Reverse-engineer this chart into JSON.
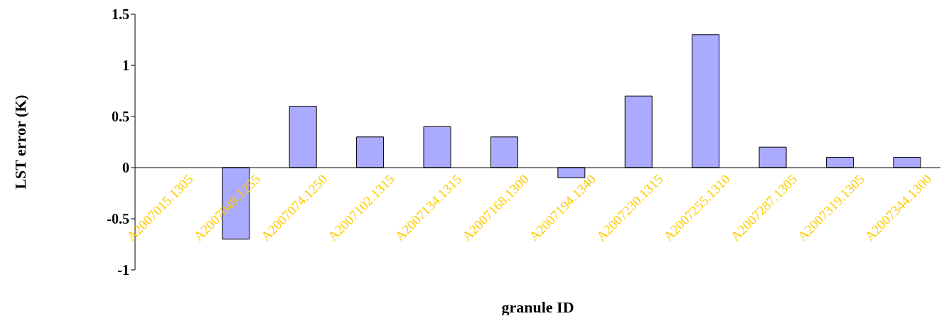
{
  "chart_data": {
    "type": "bar",
    "xlabel": "granule ID",
    "ylabel": "LST error (K)",
    "categories": [
      "A2007015.1305",
      "A2007049.1255",
      "A2007074.1250",
      "A2007102.1315",
      "A2007134.1315",
      "A2007168.1300",
      "A2007194.1340",
      "A2007230.1315",
      "A2007255.1310",
      "A2007287.1305",
      "A2007319.1305",
      "A2007344.1300"
    ],
    "values": [
      0,
      -0.7,
      0.6,
      0.3,
      0.4,
      0.3,
      -0.1,
      0.7,
      1.3,
      0.2,
      0.1,
      0.1
    ],
    "color": "#aaaaff",
    "ylim": [
      -1,
      1.5
    ],
    "yticks": [
      -1,
      -0.5,
      0,
      0.5,
      1,
      1.5
    ],
    "grid": false,
    "legend": false
  }
}
